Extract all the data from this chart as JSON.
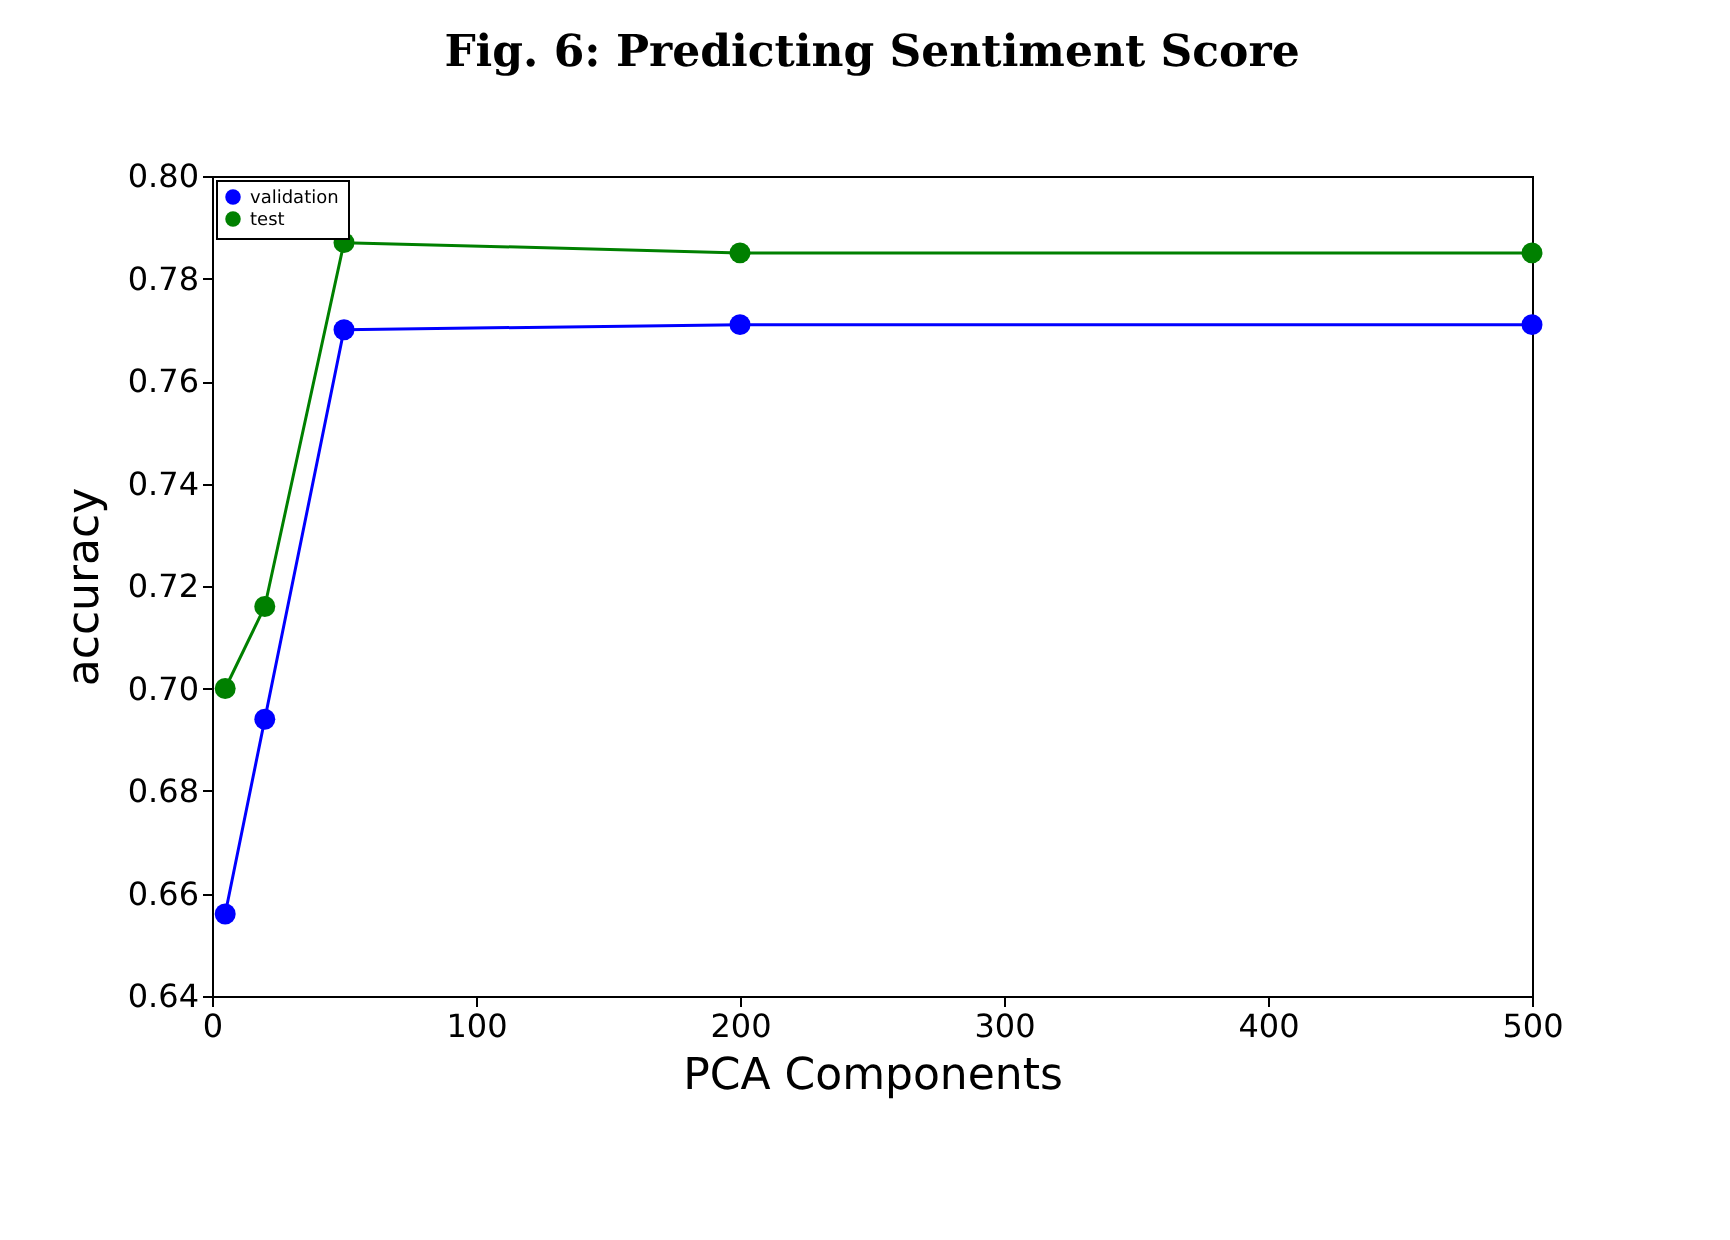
{
  "chart_data": {
    "type": "line",
    "title": "Fig. 6: Predicting Sentiment Score",
    "xlabel": "PCA Components",
    "ylabel": "accuracy",
    "x": [
      5,
      20,
      50,
      200,
      500
    ],
    "series": [
      {
        "name": "validation",
        "color": "#0000ff",
        "values": [
          0.656,
          0.694,
          0.77,
          0.771,
          0.771
        ]
      },
      {
        "name": "test",
        "color": "#008000",
        "values": [
          0.7,
          0.716,
          0.787,
          0.785,
          0.785
        ]
      }
    ],
    "xlim": [
      0,
      500
    ],
    "xticks": [
      0,
      100,
      200,
      300,
      400,
      500
    ],
    "ylim": [
      0.64,
      0.8
    ],
    "yticks": [
      {
        "value": 0.64,
        "label": "0.64"
      },
      {
        "value": 0.66,
        "label": "0.66"
      },
      {
        "value": 0.68,
        "label": "0.68"
      },
      {
        "value": 0.7,
        "label": "0.70"
      },
      {
        "value": 0.72,
        "label": "0.72"
      },
      {
        "value": 0.74,
        "label": "0.74"
      },
      {
        "value": 0.76,
        "label": "0.76"
      },
      {
        "value": 0.78,
        "label": "0.78"
      },
      {
        "value": 0.8,
        "label": "0.80"
      }
    ],
    "grid": false,
    "legend": "top left",
    "marker": "circle",
    "line_style": "solid"
  }
}
